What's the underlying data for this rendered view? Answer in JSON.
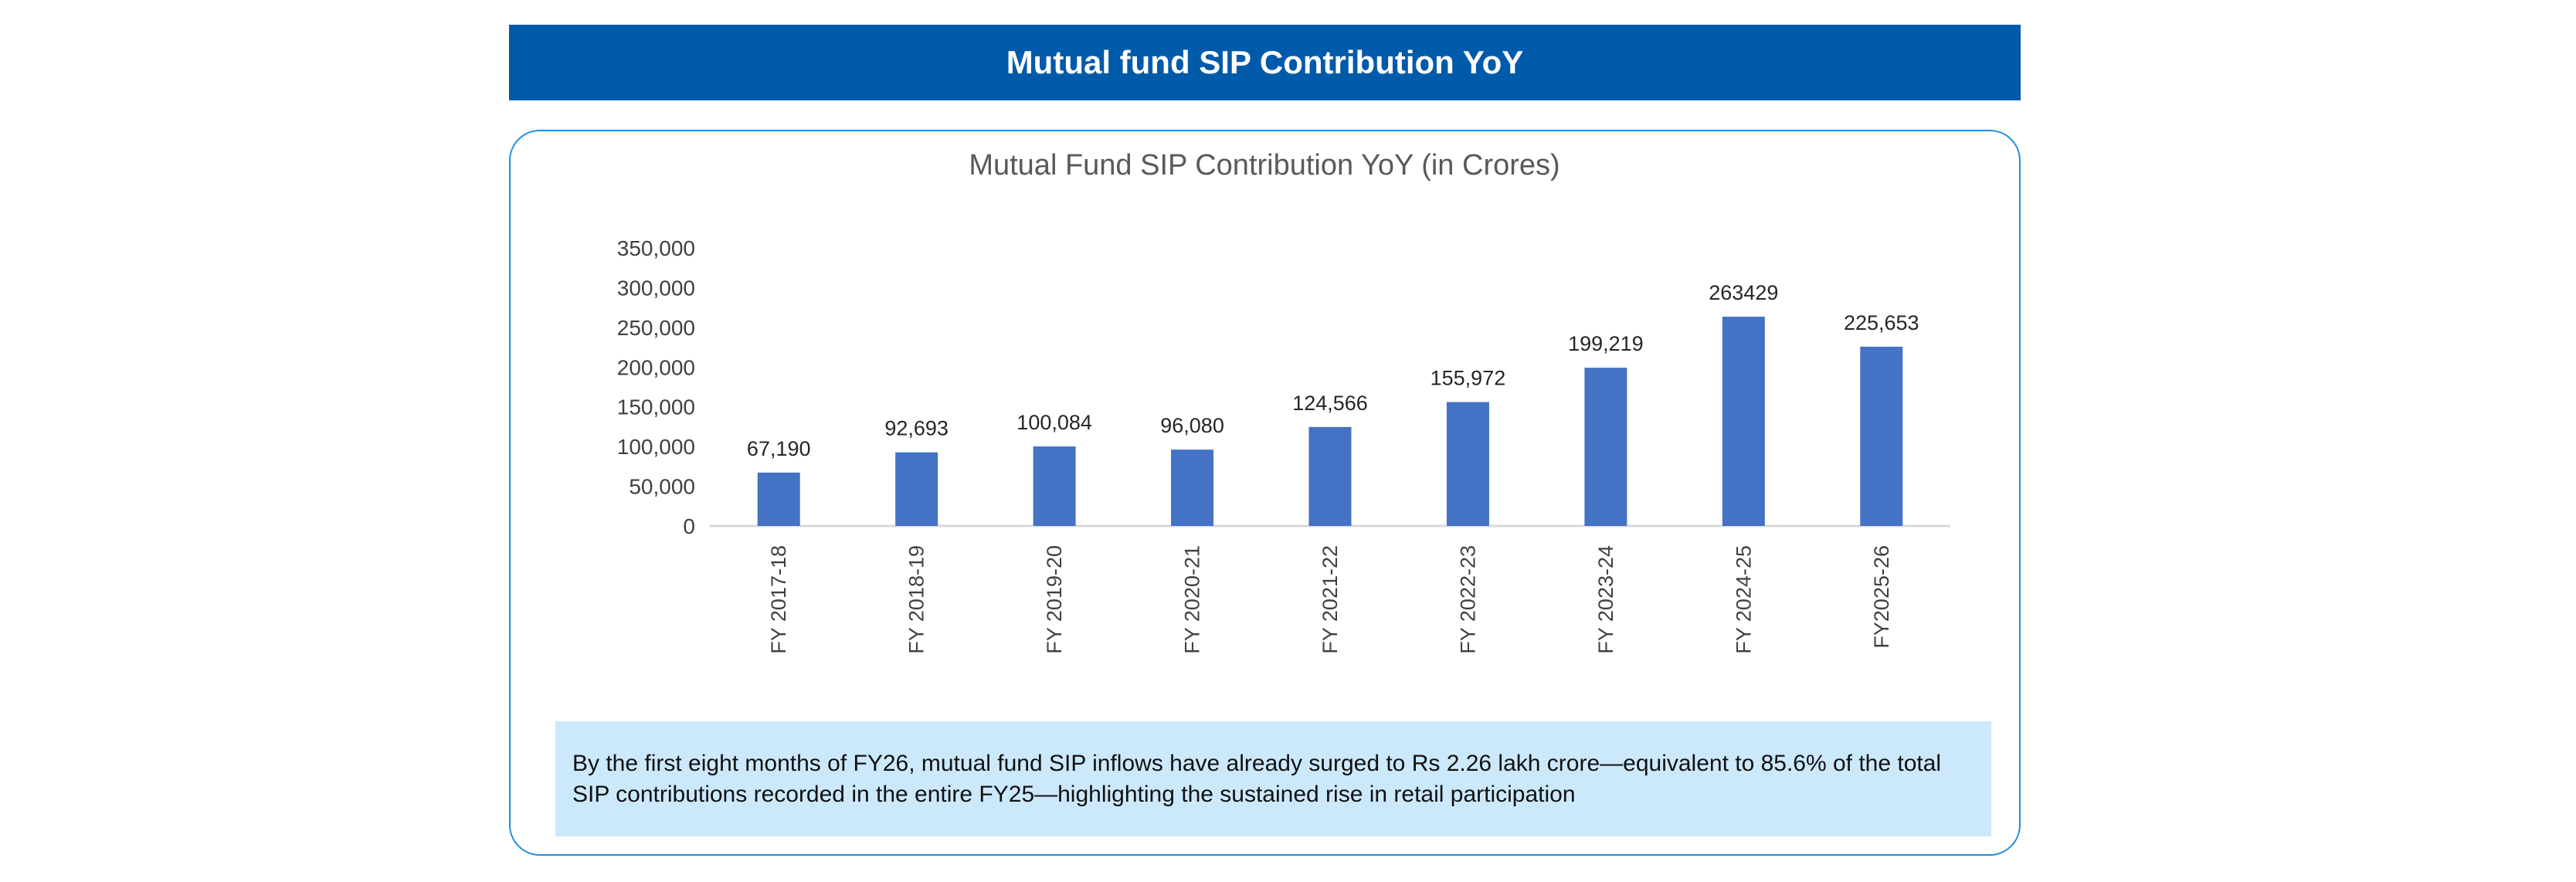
{
  "banner": {
    "title": "Mutual fund SIP Contribution YoY"
  },
  "colors": {
    "banner": "#005AAA",
    "bar": "#4472C4",
    "note_bg": "#CCE9FC",
    "card_border": "#1E8FE0"
  },
  "chart_data": {
    "type": "bar",
    "title": "Mutual Fund SIP Contribution YoY (in Crores)",
    "xlabel": "",
    "ylabel": "",
    "categories": [
      "FY 2017-18",
      "FY 2018-19",
      "FY 2019-20",
      "FY 2020-21",
      "FY 2021-22",
      "FY 2022-23",
      "FY 2023-24",
      "FY 2024-25",
      "FY2025-26"
    ],
    "values": [
      67190,
      92693,
      100084,
      96080,
      124566,
      155972,
      199219,
      263429,
      225653
    ],
    "data_labels": [
      "67,190",
      "92,693",
      "100,084",
      "96,080",
      "124,566",
      "155,972",
      "199,219",
      "263429",
      "225,653"
    ],
    "ylim": [
      0,
      350000
    ],
    "yticks": [
      "0",
      "50,000",
      "100,000",
      "150,000",
      "200,000",
      "250,000",
      "300,000",
      "350,000"
    ],
    "grid": false,
    "legend": "none"
  },
  "note": {
    "text": "By the first eight months of FY26, mutual fund SIP inflows have already surged to Rs 2.26 lakh crore—equivalent to 85.6% of the total SIP contributions recorded in the entire FY25—highlighting the sustained rise in retail participation"
  }
}
